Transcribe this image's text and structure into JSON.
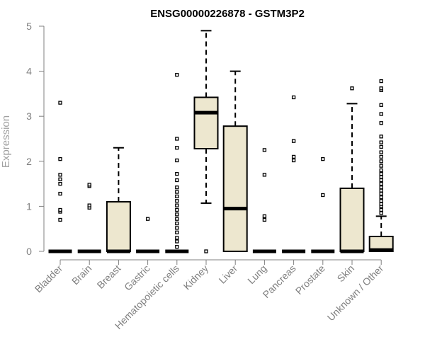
{
  "chart_data": {
    "type": "box",
    "title": "ENSG00000226878 - GSTM3P2",
    "xlabel": "",
    "ylabel": "Expression",
    "ylim": [
      0,
      5
    ],
    "yticks": [
      0,
      1,
      2,
      3,
      4,
      5
    ],
    "box_fill": "#ede7cf",
    "box_stroke": "#000000",
    "axis_color": "#808080",
    "categories": [
      "Bladder",
      "Brain",
      "Breast",
      "Gastric",
      "Hematopoietic cells",
      "Kidney",
      "Liver",
      "Lung",
      "Pancreas",
      "Prostate",
      "Skin",
      "Unknown / Other"
    ],
    "boxes": [
      {
        "q1": 0,
        "median": 0,
        "q3": 0,
        "whisker_low": 0,
        "whisker_high": 0,
        "outliers": [
          0.7,
          0.88,
          0.92,
          1.28,
          1.5,
          1.6,
          1.7,
          2.05,
          3.3
        ]
      },
      {
        "q1": 0,
        "median": 0,
        "q3": 0,
        "whisker_low": 0,
        "whisker_high": 0,
        "outliers": [
          0.97,
          1.02,
          1.45,
          1.48
        ]
      },
      {
        "q1": 0,
        "median": 0,
        "q3": 1.1,
        "whisker_low": 0,
        "whisker_high": 2.3,
        "outliers": []
      },
      {
        "q1": 0,
        "median": 0,
        "q3": 0,
        "whisker_low": 0,
        "whisker_high": 0,
        "outliers": [
          0.72
        ]
      },
      {
        "q1": 0,
        "median": 0,
        "q3": 0,
        "whisker_low": 0,
        "whisker_high": 0,
        "outliers": [
          0.1,
          0.22,
          0.3,
          0.42,
          0.52,
          0.62,
          0.72,
          0.82,
          0.92,
          1.02,
          1.12,
          1.22,
          1.32,
          1.42,
          1.58,
          1.72,
          2.02,
          2.3,
          2.5,
          3.92
        ]
      },
      {
        "q1": 2.28,
        "median": 3.08,
        "q3": 3.42,
        "whisker_low": 1.07,
        "whisker_high": 4.9,
        "outliers": [
          0
        ]
      },
      {
        "q1": 0,
        "median": 0.95,
        "q3": 2.78,
        "whisker_low": 0,
        "whisker_high": 4.0,
        "outliers": []
      },
      {
        "q1": 0,
        "median": 0,
        "q3": 0,
        "whisker_low": 0,
        "whisker_high": 0,
        "outliers": [
          0.7,
          0.78,
          1.7,
          2.25
        ]
      },
      {
        "q1": 0,
        "median": 0,
        "q3": 0,
        "whisker_low": 0,
        "whisker_high": 0,
        "outliers": [
          2.02,
          2.1,
          2.45,
          3.42
        ]
      },
      {
        "q1": 0,
        "median": 0,
        "q3": 0,
        "whisker_low": 0,
        "whisker_high": 0,
        "outliers": [
          1.25,
          2.05
        ]
      },
      {
        "q1": 0,
        "median": 0,
        "q3": 1.4,
        "whisker_low": 0,
        "whisker_high": 3.28,
        "outliers": [
          3.62
        ]
      },
      {
        "q1": 0,
        "median": 0.03,
        "q3": 0.33,
        "whisker_low": 0,
        "whisker_high": 0.78,
        "outliers": [
          0.85,
          0.92,
          1.0,
          1.05,
          1.12,
          1.2,
          1.28,
          1.35,
          1.42,
          1.5,
          1.58,
          1.65,
          1.72,
          1.8,
          1.9,
          2.0,
          2.1,
          2.2,
          2.32,
          2.42,
          2.55,
          2.85,
          3.05,
          3.25,
          3.58,
          3.62,
          3.78
        ]
      }
    ]
  }
}
